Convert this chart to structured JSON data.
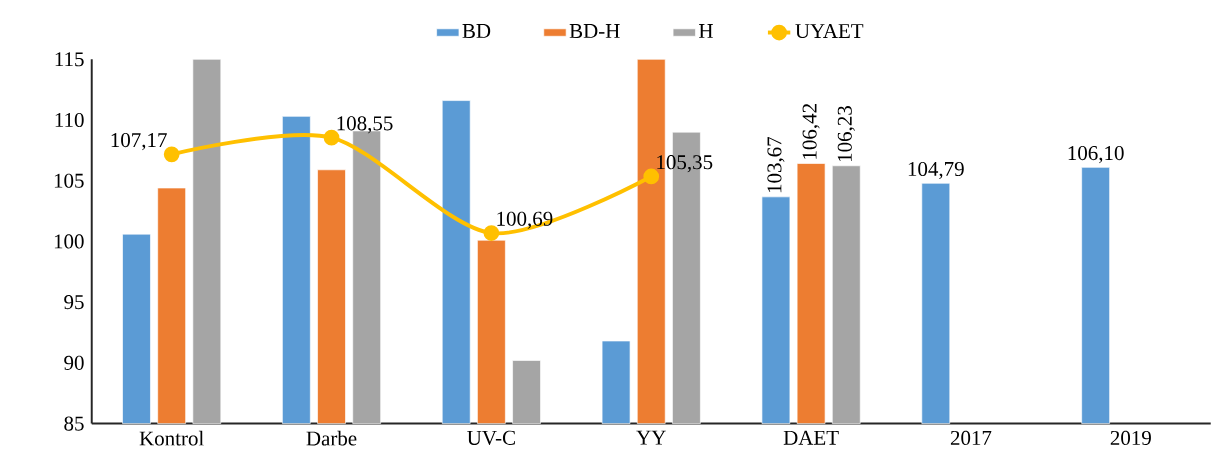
{
  "chart_data": {
    "type": "bar",
    "categories": [
      "Kontrol",
      "Darbe",
      "UV-C",
      "YY",
      "DAET",
      "2017",
      "2019"
    ],
    "ylim": [
      85,
      115
    ],
    "yticks": [
      85,
      90,
      95,
      100,
      105,
      110,
      115
    ],
    "legend": "top",
    "grid": false,
    "marker": "circle",
    "series": [
      {
        "name": "BD",
        "color": "#5b9bd5",
        "values": [
          100.6,
          110.3,
          111.6,
          91.8,
          103.67,
          104.79,
          106.1
        ],
        "value_labels": [
          null,
          null,
          null,
          null,
          "103,67",
          "104,79",
          "106,10"
        ]
      },
      {
        "name": "BD-H",
        "color": "#ed7d31",
        "values": [
          104.4,
          105.9,
          100.1,
          115,
          106.42,
          null,
          null
        ],
        "value_labels": [
          null,
          null,
          null,
          null,
          "106,42",
          null,
          null
        ]
      },
      {
        "name": "H",
        "color": "#a5a5a5",
        "values": [
          115,
          109.1,
          90.2,
          109.0,
          106.23,
          null,
          null
        ],
        "value_labels": [
          null,
          null,
          null,
          null,
          "106,23",
          null,
          null
        ]
      },
      {
        "name": "UYAET",
        "type": "line",
        "color": "#ffc000",
        "values": [
          107.17,
          108.55,
          100.69,
          105.35,
          null,
          null,
          null
        ],
        "value_labels": [
          "107,17",
          "108,55",
          "100,69",
          "105,35",
          null,
          null,
          null
        ]
      }
    ]
  }
}
